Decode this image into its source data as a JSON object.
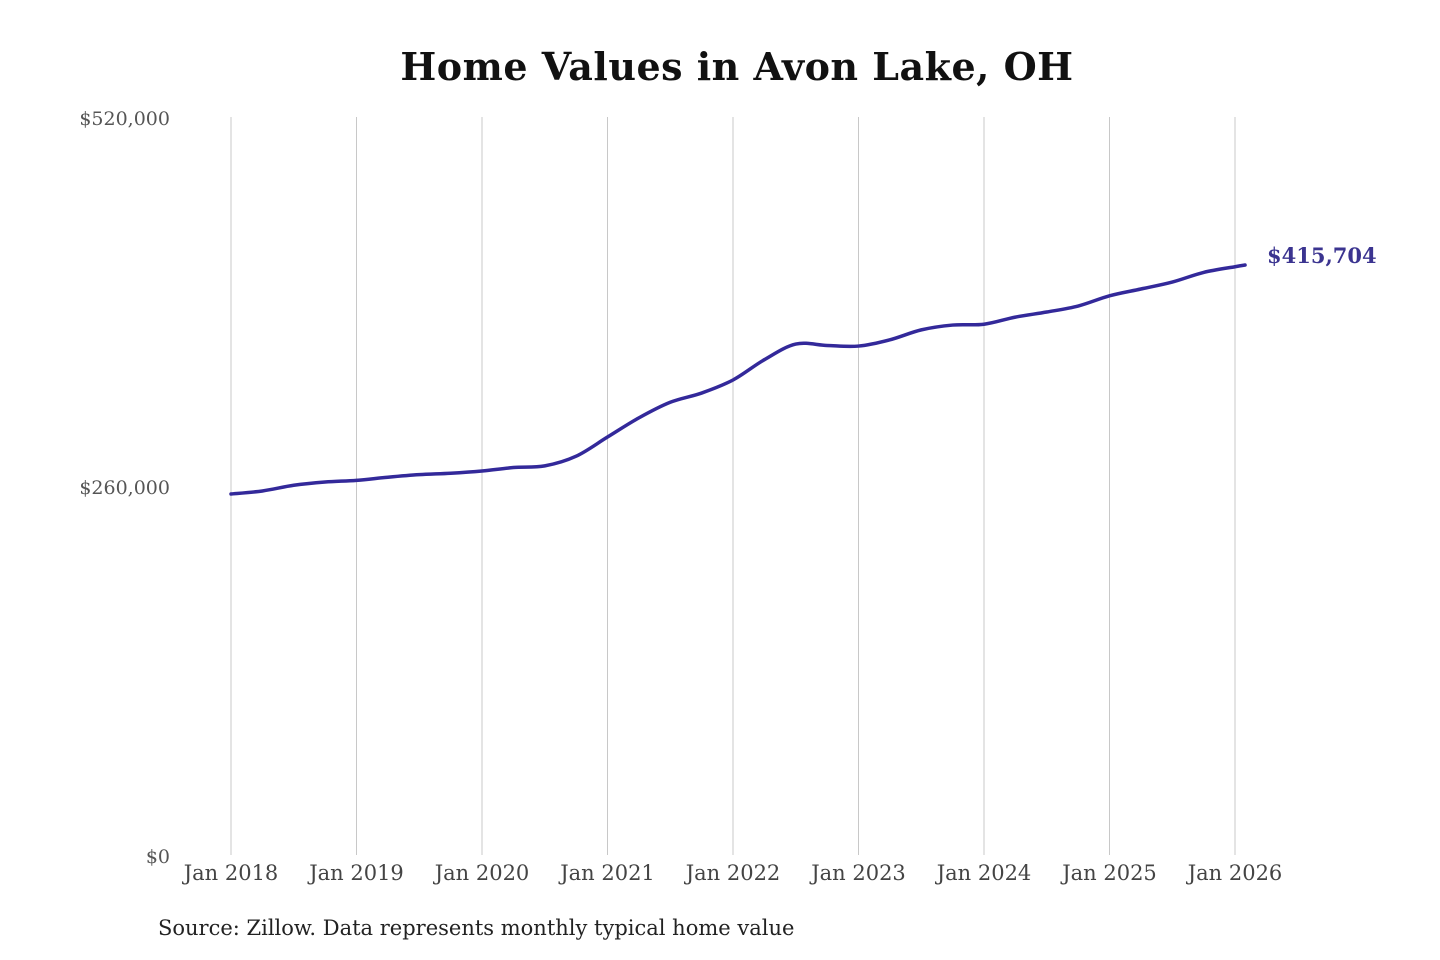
{
  "chart_data": {
    "type": "line",
    "title": "Home Values in Avon Lake, OH",
    "xlabel": "",
    "ylabel": "",
    "ylim": [
      0,
      520000
    ],
    "xlim": [
      2018.0,
      2026.08
    ],
    "yticks": [
      0,
      260000,
      520000
    ],
    "ytick_labels": [
      "$0",
      "$260,000",
      "$520,000"
    ],
    "xticks": [
      2018,
      2019,
      2020,
      2021,
      2022,
      2023,
      2024,
      2025,
      2026
    ],
    "xtick_labels": [
      "Jan 2018",
      "Jan 2019",
      "Jan 2020",
      "Jan 2021",
      "Jan 2022",
      "Jan 2023",
      "Jan 2024",
      "Jan 2025",
      "Jan 2026"
    ],
    "grid": "vertical",
    "series": [
      {
        "name": "Typical home value",
        "color": "#33299a",
        "x": [
          2018.0,
          2018.25,
          2018.5,
          2018.75,
          2019.0,
          2019.25,
          2019.5,
          2019.75,
          2020.0,
          2020.25,
          2020.5,
          2020.75,
          2021.0,
          2021.25,
          2021.5,
          2021.75,
          2022.0,
          2022.25,
          2022.5,
          2022.75,
          2023.0,
          2023.25,
          2023.5,
          2023.75,
          2024.0,
          2024.25,
          2024.5,
          2024.75,
          2025.0,
          2025.25,
          2025.5,
          2025.75,
          2026.0,
          2026.08
        ],
        "values": [
          254400,
          256500,
          260500,
          262800,
          264000,
          266200,
          268000,
          269000,
          270600,
          273000,
          274200,
          281000,
          294500,
          308000,
          319000,
          325500,
          334700,
          349000,
          360000,
          359000,
          358600,
          363000,
          370000,
          373400,
          374000,
          379000,
          382600,
          386800,
          394000,
          398800,
          403700,
          410500,
          414500,
          415704
        ]
      }
    ],
    "annotations": [
      {
        "text": "$415,704",
        "x": 2026.08,
        "y": 415704
      }
    ]
  },
  "source_note": "Source: Zillow. Data represents monthly typical home value"
}
